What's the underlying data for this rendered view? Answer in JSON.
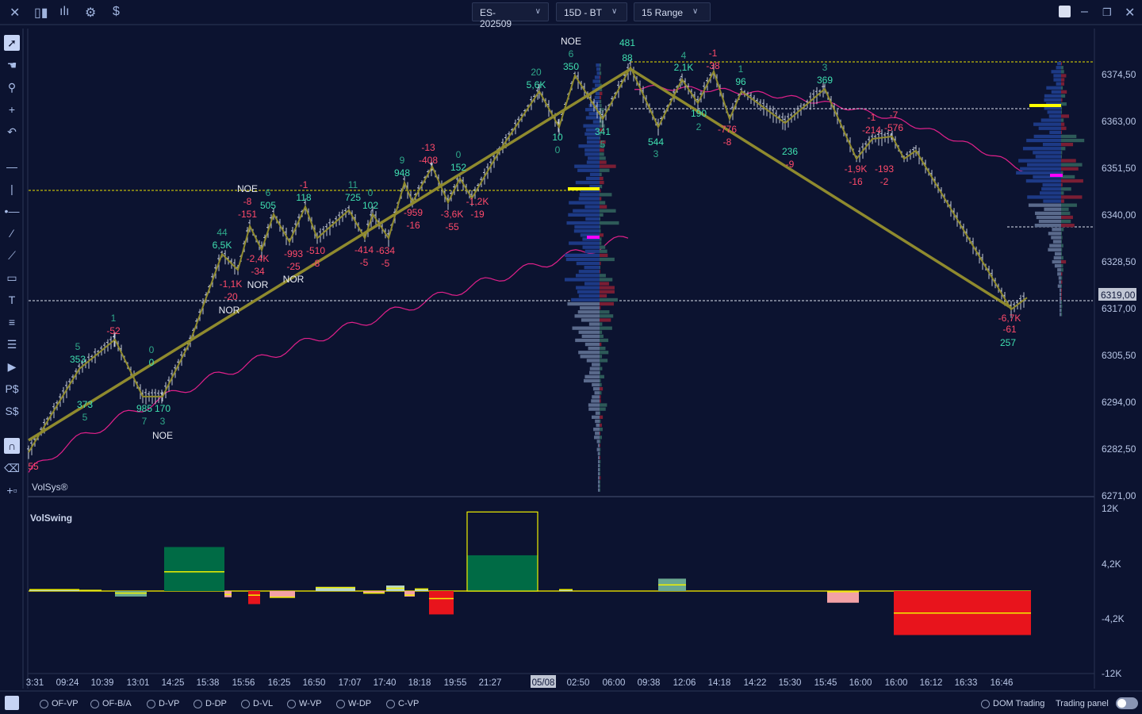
{
  "topbar": {
    "icons": [
      "close-icon",
      "candles-icon",
      "volume-bars-icon",
      "gear-icon",
      "dollar-icon"
    ],
    "symbol": "ES-202509",
    "period": "15D - BT",
    "range": "15 Range"
  },
  "toolbar": {
    "tools": [
      "cursor",
      "hand",
      "zoom",
      "crosshair",
      "magnet-curve",
      "horizontal-line",
      "vertical-line",
      "ray",
      "trend-line",
      "channel",
      "rectangle",
      "text",
      "fib-levels",
      "lines",
      "volume-profile",
      "price-dollar",
      "session-dollar",
      "magnet",
      "eraser",
      "add-object"
    ]
  },
  "chart": {
    "watermark": "VolSys®",
    "price_ticks": [
      "6374,50",
      "6363,00",
      "6351,50",
      "6340,00",
      "6328,50",
      "6317,00",
      "6305,50",
      "6294,00",
      "6282,50",
      "6271,00"
    ],
    "current_price": "6319,00",
    "time_ticks": [
      "3:31",
      "09:24",
      "10:39",
      "13:01",
      "14:25",
      "15:38",
      "15:56",
      "16:25",
      "16:50",
      "17:07",
      "17:40",
      "18:18",
      "19:55",
      "21:27",
      "05/08",
      "02:50",
      "06:00",
      "09:38",
      "12:06",
      "14:18",
      "14:22",
      "15:30",
      "15:45",
      "16:00",
      "16:00",
      "16:12",
      "16:33",
      "16:46"
    ],
    "selected_time": "05/08",
    "swing_prices": [
      6281.7,
      6302.2,
      6309.4,
      6295.4,
      6295.4,
      6309.0,
      6330.4,
      6326.5,
      6337.3,
      6331.4,
      6340.2,
      6333.4,
      6342.1,
      6334.3,
      6341.2,
      6334.3,
      6340.2,
      6334.3,
      6348.0,
      6343.1,
      6351.9,
      6343.1,
      6349.0,
      6344.1,
      6355.8,
      6370.4,
      6361.6,
      6374.3,
      6363.6,
      6376.3,
      6361.6,
      6373.3,
      6367.5,
      6375.3,
      6363.6,
      6370.4,
      6362.6,
      6371.0,
      6353.8,
      6358.7,
      6359.3,
      6353.8,
      6355.8,
      6316.8,
      6319.7
    ],
    "labels": [
      [
        "55",
        "neg"
      ],
      [
        "5",
        "pos2"
      ],
      [
        "353",
        "pos"
      ],
      [
        "373",
        "pos"
      ],
      [
        "5",
        "pos2"
      ],
      [
        "1",
        "pos2"
      ],
      [
        "-52",
        "neg"
      ],
      [
        "0",
        "pos2"
      ],
      [
        "0",
        "pos"
      ],
      [
        "985",
        "pos"
      ],
      [
        "170",
        "pos"
      ],
      [
        "7",
        "pos2"
      ],
      [
        "3",
        "pos2"
      ],
      [
        "NOE",
        "tag"
      ],
      [
        "44",
        "pos2"
      ],
      [
        "6,5K",
        "pos"
      ],
      [
        "-1,1K",
        "neg"
      ],
      [
        "-20",
        "neg"
      ],
      [
        "NOR",
        "tag"
      ],
      [
        "NOE",
        "tag"
      ],
      [
        "-8",
        "neg"
      ],
      [
        "-151",
        "neg"
      ],
      [
        "6",
        "pos2"
      ],
      [
        "505",
        "pos"
      ],
      [
        "-2,4K",
        "neg"
      ],
      [
        "-34",
        "neg"
      ],
      [
        "NOR",
        "tag"
      ],
      [
        "-1",
        "neg"
      ],
      [
        "118",
        "pos"
      ],
      [
        "-993",
        "neg"
      ],
      [
        "-25",
        "neg"
      ],
      [
        "NOR",
        "tag"
      ],
      [
        "-510",
        "neg"
      ],
      [
        "-8",
        "neg"
      ],
      [
        "11",
        "pos2"
      ],
      [
        "725",
        "pos"
      ],
      [
        "0",
        "pos2"
      ],
      [
        "102",
        "pos"
      ],
      [
        "-414",
        "neg"
      ],
      [
        "-5",
        "neg"
      ],
      [
        "-634",
        "neg"
      ],
      [
        "-5",
        "neg"
      ],
      [
        "9",
        "pos2"
      ],
      [
        "948",
        "pos"
      ],
      [
        "-959",
        "neg"
      ],
      [
        "-16",
        "neg"
      ],
      [
        "-13",
        "neg"
      ],
      [
        "-408",
        "neg"
      ],
      [
        "-3,6K",
        "neg"
      ],
      [
        "-55",
        "neg"
      ],
      [
        "0",
        "pos2"
      ],
      [
        "152",
        "pos"
      ],
      [
        "-1,2K",
        "neg"
      ],
      [
        "-19",
        "neg"
      ],
      [
        "20",
        "pos2"
      ],
      [
        "5,6K",
        "pos"
      ],
      [
        "NOE",
        "tag"
      ],
      [
        "6",
        "pos2"
      ],
      [
        "350",
        "pos"
      ],
      [
        "10",
        "pos"
      ],
      [
        "0",
        "pos2"
      ],
      [
        "341",
        "pos"
      ],
      [
        "5",
        "pos2"
      ],
      [
        "481",
        "pos"
      ],
      [
        "88",
        "pos"
      ],
      [
        "544",
        "pos"
      ],
      [
        "3",
        "pos2"
      ],
      [
        "4",
        "pos2"
      ],
      [
        "2,1K",
        "pos"
      ],
      [
        "-1",
        "neg"
      ],
      [
        "-38",
        "neg"
      ],
      [
        "190",
        "pos"
      ],
      [
        "2",
        "pos2"
      ],
      [
        "1",
        "pos2"
      ],
      [
        "96",
        "pos"
      ],
      [
        "-776",
        "neg"
      ],
      [
        "-8",
        "neg"
      ],
      [
        "3",
        "pos2"
      ],
      [
        "369",
        "pos"
      ],
      [
        "236",
        "pos"
      ],
      [
        "-9",
        "neg"
      ],
      [
        "-1",
        "neg"
      ],
      [
        "-214",
        "neg"
      ],
      [
        "-7",
        "neg"
      ],
      [
        "-576",
        "neg"
      ],
      [
        "-1,9K",
        "neg"
      ],
      [
        "-16",
        "neg"
      ],
      [
        "-193",
        "neg"
      ],
      [
        "-2",
        "neg"
      ],
      [
        "-6,7K",
        "neg"
      ],
      [
        "-61",
        "neg"
      ],
      [
        "257",
        "pos"
      ]
    ]
  },
  "volswing": {
    "title": "VolSwing",
    "ticks": [
      "12K",
      "4,2K",
      "-4,2K",
      "-12K"
    ],
    "bars": [
      [
        0.2,
        "lightgreen",
        0.2
      ],
      [
        0.1,
        "lightgreen",
        0.1
      ],
      [
        -0.8,
        "green-muted",
        -0.3
      ],
      [
        6.4,
        "green",
        2.8
      ],
      [
        -0.9,
        "pink",
        -0.5
      ],
      [
        -1.9,
        "red",
        -0.6
      ],
      [
        -1.0,
        "pink",
        -0.9
      ],
      [
        0.6,
        "lightgreen",
        0.5
      ],
      [
        -0.3,
        "pink",
        -0.3
      ],
      [
        0.8,
        "lightgreen",
        0.4
      ],
      [
        -0.8,
        "pink",
        -0.6
      ],
      [
        0.3,
        "lightgreen",
        0.3
      ],
      [
        -3.4,
        "red",
        -1.1
      ],
      [
        5.2,
        "green",
        11.5
      ],
      [
        0.2,
        "lightgreen",
        0.2
      ],
      [
        1.8,
        "green-muted",
        0.9
      ],
      [
        -1.7,
        "pink",
        -0.1
      ],
      [
        -6.4,
        "red",
        -3.2
      ]
    ]
  },
  "colors": {
    "bg": "#0c1330",
    "pos": "#3fe0b0",
    "pos2": "#2fa88a",
    "neg": "#ff4a6a",
    "tag": "#e6e9f2",
    "swing": "#8f8a2e",
    "vwap": "#e0208a",
    "poc": "#ffff00",
    "vah": "#ff00ff",
    "green": "#006b45",
    "red": "#e8141c",
    "pink": "#f3a1a5",
    "lightgreen": "#b8d8c8",
    "green-muted": "#6aa890"
  },
  "bottombar": {
    "options": [
      "OF-VP",
      "OF-B/A",
      "D-VP",
      "D-DP",
      "D-VL",
      "W-VP",
      "W-DP",
      "C-VP"
    ],
    "dom": "DOM Trading",
    "trading_panel": "Trading panel",
    "trading_panel_on": false
  }
}
